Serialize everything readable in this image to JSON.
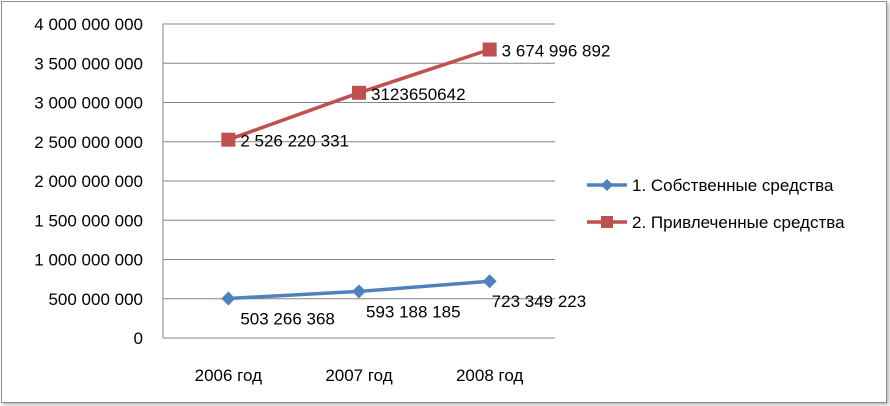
{
  "chart_data": {
    "type": "line",
    "title": "",
    "xlabel": "",
    "ylabel": "",
    "categories": [
      "2006 год",
      "2007 год",
      "2008 год"
    ],
    "ylim": [
      0,
      4000000000
    ],
    "y_ticks": [
      0,
      500000000,
      1000000000,
      1500000000,
      2000000000,
      2500000000,
      3000000000,
      3500000000,
      4000000000
    ],
    "y_tick_labels": [
      "0",
      "500 000 000",
      "1 000 000 000",
      "1 500 000 000",
      "2 000 000 000",
      "2 500 000 000",
      "3 000 000 000",
      "3 500 000 000",
      "4 000 000 000"
    ],
    "grid": true,
    "legend_position": "right",
    "series": [
      {
        "name": "1. Собственные средства",
        "color": "#4f81bd",
        "marker": "diamond",
        "values": [
          503266368,
          593188185,
          723349223
        ],
        "data_labels": [
          "503 266 368",
          "593 188 185",
          "723 349 223"
        ]
      },
      {
        "name": "2. Привлеченные средства",
        "color": "#c0504d",
        "marker": "square",
        "values": [
          2526220331,
          3123650642,
          3674996892
        ],
        "data_labels": [
          "2 526 220 331",
          "3123650642",
          "3 674 996 892"
        ]
      }
    ]
  }
}
